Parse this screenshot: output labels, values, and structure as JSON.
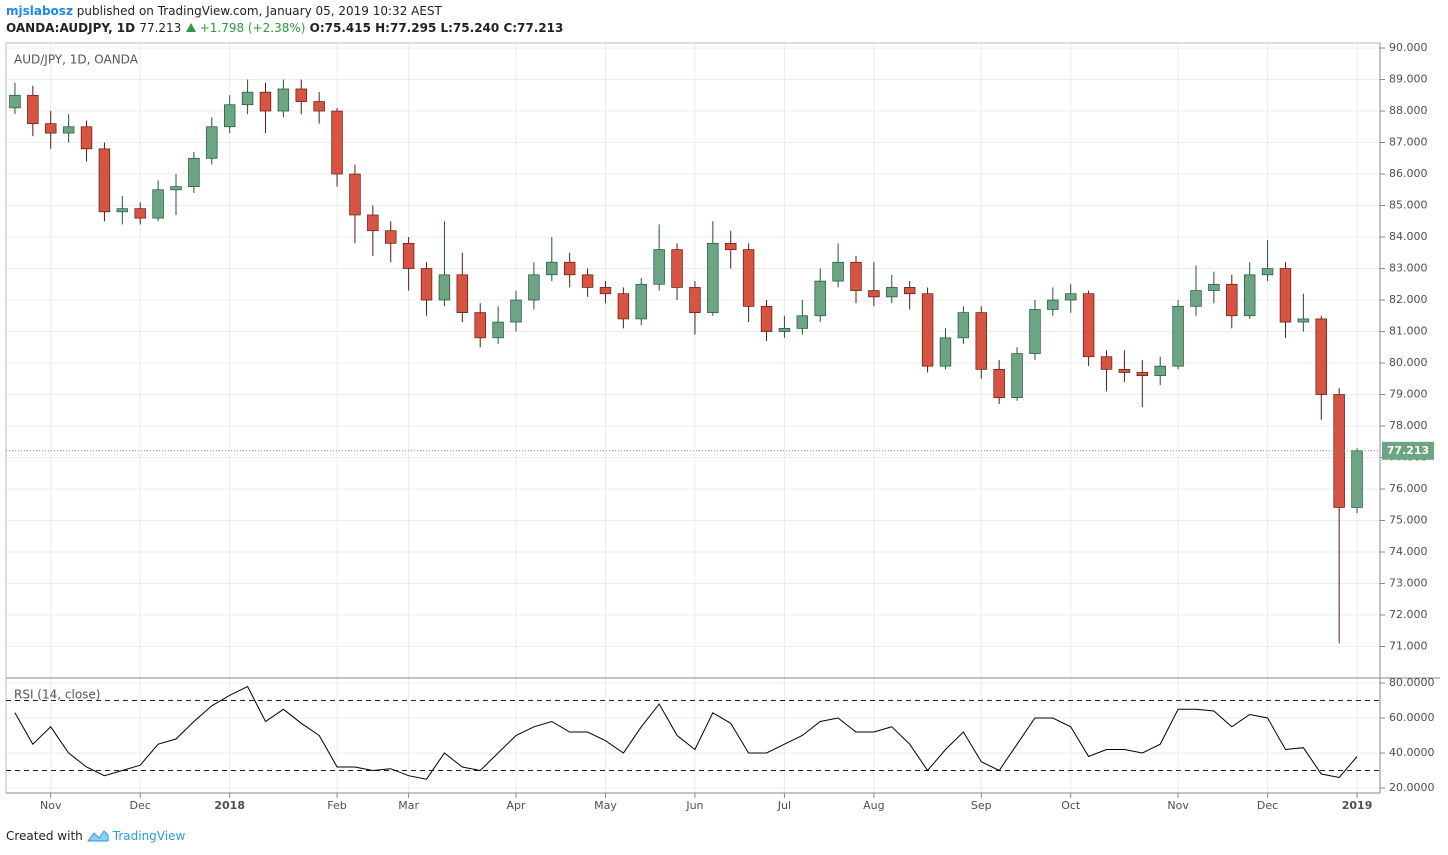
{
  "header": {
    "user": "mjslabosz",
    "published": "published on TradingView.com, January 05, 2019 10:32 AEST",
    "symbol": "OANDA:AUDJPY, 1D",
    "last": "77.213",
    "change": "+1.798 (+2.38%)",
    "open": "O:75.415",
    "high": "H:77.295",
    "low": "L:75.240",
    "close": "C:77.213"
  },
  "footer": {
    "created": "Created with",
    "brand": "TradingView"
  },
  "chart_data": [
    {
      "type": "candlestick",
      "title": "AUD/JPY, 1D, OANDA",
      "categories": [
        null,
        null,
        "Nov",
        null,
        null,
        null,
        null,
        "Dec",
        null,
        null,
        null,
        null,
        "2018",
        null,
        null,
        null,
        null,
        null,
        "Feb",
        null,
        null,
        null,
        "Mar",
        null,
        null,
        null,
        null,
        null,
        "Apr",
        null,
        null,
        null,
        null,
        "May",
        null,
        null,
        null,
        null,
        "Jun",
        null,
        null,
        null,
        null,
        "Jul",
        null,
        null,
        null,
        null,
        "Aug",
        null,
        null,
        null,
        null,
        null,
        "Sep",
        null,
        null,
        null,
        null,
        "Oct",
        null,
        null,
        null,
        null,
        null,
        "Nov",
        null,
        null,
        null,
        null,
        "Dec",
        null,
        null,
        null,
        null,
        "2019"
      ],
      "open": [
        88.1,
        88.5,
        87.6,
        87.3,
        87.5,
        86.8,
        84.8,
        84.9,
        84.6,
        85.5,
        85.6,
        86.5,
        87.5,
        88.2,
        88.6,
        88.0,
        88.7,
        88.3,
        88.0,
        86.0,
        84.7,
        84.2,
        83.8,
        83.0,
        82.0,
        82.8,
        81.6,
        80.8,
        81.3,
        82.0,
        82.8,
        83.2,
        82.8,
        82.4,
        82.2,
        81.4,
        82.5,
        83.6,
        82.4,
        81.6,
        83.8,
        83.6,
        81.8,
        81.0,
        81.1,
        81.5,
        82.6,
        83.2,
        82.3,
        82.1,
        82.4,
        82.2,
        79.9,
        80.8,
        81.6,
        79.8,
        78.9,
        80.3,
        81.7,
        82.0,
        82.2,
        80.2,
        79.8,
        79.7,
        79.6,
        79.9,
        81.8,
        82.3,
        82.5,
        81.5,
        82.8,
        83.0,
        81.3,
        81.4,
        79.0,
        75.415
      ],
      "high": [
        88.9,
        88.8,
        88.0,
        87.9,
        87.7,
        87.0,
        85.3,
        85.1,
        85.8,
        86.0,
        86.7,
        87.8,
        88.5,
        89.0,
        88.9,
        89.0,
        89.0,
        88.6,
        88.1,
        86.3,
        85.0,
        84.5,
        84.0,
        83.2,
        84.5,
        83.5,
        81.9,
        81.8,
        82.3,
        83.2,
        84.0,
        83.5,
        83.0,
        82.6,
        82.4,
        82.7,
        84.4,
        83.8,
        82.6,
        84.5,
        84.2,
        83.8,
        82.0,
        81.5,
        82.0,
        83.0,
        83.8,
        83.4,
        83.2,
        82.8,
        82.6,
        82.4,
        81.1,
        81.8,
        81.8,
        80.1,
        80.5,
        82.0,
        82.4,
        82.5,
        82.3,
        80.4,
        80.4,
        80.1,
        80.2,
        82.0,
        83.1,
        82.9,
        82.8,
        83.2,
        83.9,
        83.2,
        82.2,
        81.5,
        79.2,
        77.295
      ],
      "low": [
        87.9,
        87.2,
        86.8,
        87.0,
        86.4,
        84.5,
        84.4,
        84.4,
        84.5,
        84.7,
        85.4,
        86.3,
        87.3,
        87.9,
        87.3,
        87.8,
        87.9,
        87.6,
        85.6,
        83.8,
        83.4,
        83.2,
        82.3,
        81.5,
        81.8,
        81.3,
        80.5,
        80.6,
        81.0,
        81.7,
        82.6,
        82.4,
        82.1,
        81.9,
        81.1,
        81.2,
        82.3,
        82.0,
        80.9,
        81.5,
        83.0,
        81.3,
        80.7,
        80.8,
        80.9,
        81.3,
        82.4,
        81.9,
        81.8,
        81.9,
        81.7,
        79.7,
        79.8,
        80.6,
        79.5,
        78.7,
        78.8,
        80.1,
        81.5,
        81.6,
        79.9,
        79.1,
        79.4,
        78.6,
        79.3,
        79.8,
        81.5,
        81.9,
        81.1,
        81.4,
        82.6,
        80.8,
        81.0,
        78.2,
        71.1,
        75.24
      ],
      "close": [
        88.5,
        87.6,
        87.3,
        87.5,
        86.8,
        84.8,
        84.9,
        84.6,
        85.5,
        85.6,
        86.5,
        87.5,
        88.2,
        88.6,
        88.0,
        88.7,
        88.3,
        88.0,
        86.0,
        84.7,
        84.2,
        83.8,
        83.0,
        82.0,
        82.8,
        81.6,
        80.8,
        81.3,
        82.0,
        82.8,
        83.2,
        82.8,
        82.4,
        82.2,
        81.4,
        82.5,
        83.6,
        82.4,
        81.6,
        83.8,
        83.6,
        81.8,
        81.0,
        81.1,
        81.5,
        82.6,
        83.2,
        82.3,
        82.1,
        82.4,
        82.2,
        79.9,
        80.8,
        81.6,
        79.8,
        78.9,
        80.3,
        81.7,
        82.0,
        82.2,
        80.2,
        79.8,
        79.7,
        79.6,
        79.9,
        81.8,
        82.3,
        82.5,
        81.5,
        82.8,
        83.0,
        81.3,
        81.4,
        79.0,
        75.415,
        77.213
      ],
      "up_color": "#6ba583",
      "down_color": "#d75442",
      "up_wick": "#225437",
      "down_wick": "#5b1a13",
      "ylim": [
        70.0,
        90.16
      ],
      "yticks": [
        {
          "value": 90,
          "label": "90.000"
        },
        {
          "value": 89,
          "label": "89.000"
        },
        {
          "value": 88,
          "label": "88.000"
        },
        {
          "value": 87,
          "label": "87.000"
        },
        {
          "value": 86,
          "label": "86.000"
        },
        {
          "value": 85,
          "label": "85.000"
        },
        {
          "value": 84,
          "label": "84.000"
        },
        {
          "value": 83,
          "label": "83.000"
        },
        {
          "value": 82,
          "label": "82.000"
        },
        {
          "value": 81,
          "label": "81.000"
        },
        {
          "value": 80,
          "label": "80.000"
        },
        {
          "value": 79,
          "label": "79.000"
        },
        {
          "value": 78,
          "label": "78.000"
        },
        {
          "value": 77,
          "label": "77.000"
        },
        {
          "value": 76,
          "label": "76.000"
        },
        {
          "value": 75,
          "label": "75.000"
        },
        {
          "value": 74,
          "label": "74.000"
        },
        {
          "value": 73,
          "label": "73.000"
        },
        {
          "value": 72,
          "label": "72.000"
        },
        {
          "value": 71,
          "label": "71.000"
        }
      ],
      "grid": true,
      "last_price_color": "#6ba583"
    },
    {
      "type": "line",
      "title": "RSI (14, close)",
      "values": [
        63,
        45,
        55,
        40,
        32,
        27,
        30,
        33,
        45,
        48,
        58,
        67,
        73,
        78,
        58,
        65,
        57,
        50,
        32,
        32,
        30,
        31,
        27,
        25,
        40,
        32,
        30,
        40,
        50,
        55,
        58,
        52,
        52,
        47,
        40,
        55,
        68,
        50,
        42,
        63,
        57,
        40,
        40,
        45,
        50,
        58,
        60,
        52,
        52,
        55,
        45,
        30,
        42,
        52,
        35,
        30,
        45,
        60,
        60,
        55,
        38,
        42,
        42,
        40,
        45,
        65,
        65,
        64,
        55,
        62,
        60,
        42,
        43,
        28,
        26,
        38
      ],
      "color": "#000000",
      "levels": [
        70,
        30
      ],
      "ylim": [
        17.14,
        82.86
      ],
      "yticks": [
        {
          "value": 80,
          "label": "80.0000"
        },
        {
          "value": 60,
          "label": "60.0000"
        },
        {
          "value": 40,
          "label": "40.0000"
        },
        {
          "value": 20,
          "label": "20.0000"
        }
      ],
      "grid": true
    }
  ]
}
